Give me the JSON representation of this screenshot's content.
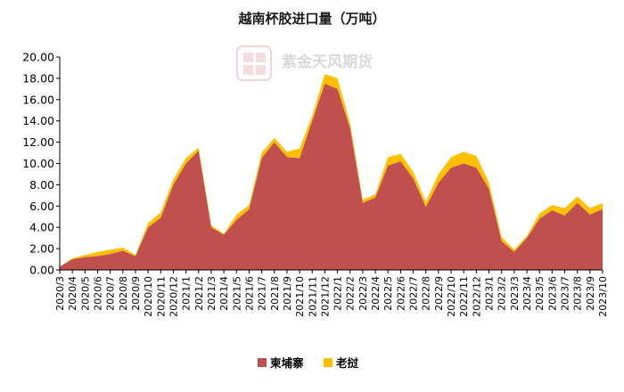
{
  "chart_data": {
    "type": "area",
    "title": "越南杯胶进口量（万吨）",
    "watermark": "紫金天风期货",
    "stacked": true,
    "ylim": [
      0,
      20
    ],
    "yticks": [
      "0.00",
      "2.00",
      "4.00",
      "6.00",
      "8.00",
      "10.00",
      "12.00",
      "14.00",
      "16.00",
      "18.00",
      "20.00"
    ],
    "grid": false,
    "legend_position": "bottom",
    "x": [
      "2020/3",
      "2020/4",
      "2020/5",
      "2020/6",
      "2020/7",
      "2020/8",
      "2020/9",
      "2020/10",
      "2020/11",
      "2020/12",
      "2021/1",
      "2021/2",
      "2021/3",
      "2021/4",
      "2021/5",
      "2021/6",
      "2021/7",
      "2021/8",
      "2021/9",
      "2021/10",
      "2021/11",
      "2021/12",
      "2022/1",
      "2022/2",
      "2022/3",
      "2022/4",
      "2022/5",
      "2022/6",
      "2022/7",
      "2022/8",
      "2022/9",
      "2022/10",
      "2022/11",
      "2022/12",
      "2023/1",
      "2023/2",
      "2023/3",
      "2023/4",
      "2023/5",
      "2023/6",
      "2023/7",
      "2023/8",
      "2023/9",
      "2023/10"
    ],
    "series": [
      {
        "name": "柬埔寨",
        "color": "#c0504d",
        "values": [
          0.3,
          1.0,
          1.2,
          1.3,
          1.5,
          1.8,
          1.3,
          4.0,
          4.9,
          8.0,
          10.0,
          11.2,
          4.0,
          3.3,
          4.7,
          5.7,
          10.5,
          12.0,
          10.6,
          10.5,
          14.0,
          17.5,
          17.0,
          13.3,
          6.3,
          6.8,
          9.8,
          10.2,
          8.6,
          5.9,
          8.2,
          9.6,
          10.0,
          9.6,
          7.6,
          2.7,
          1.7,
          3.0,
          4.8,
          5.6,
          5.1,
          6.3,
          5.2,
          5.7
        ]
      },
      {
        "name": "老挝",
        "color": "#ffc000",
        "values": [
          0.0,
          0.1,
          0.2,
          0.4,
          0.4,
          0.3,
          0.1,
          0.4,
          0.5,
          0.5,
          0.5,
          0.3,
          0.2,
          0.1,
          0.5,
          0.4,
          0.5,
          0.4,
          0.5,
          0.9,
          0.5,
          0.9,
          1.0,
          0.5,
          0.3,
          0.3,
          0.8,
          0.7,
          0.6,
          0.5,
          0.8,
          1.0,
          1.1,
          1.1,
          0.6,
          0.4,
          0.2,
          0.2,
          0.5,
          0.5,
          0.7,
          0.6,
          0.6,
          0.6
        ]
      }
    ]
  }
}
